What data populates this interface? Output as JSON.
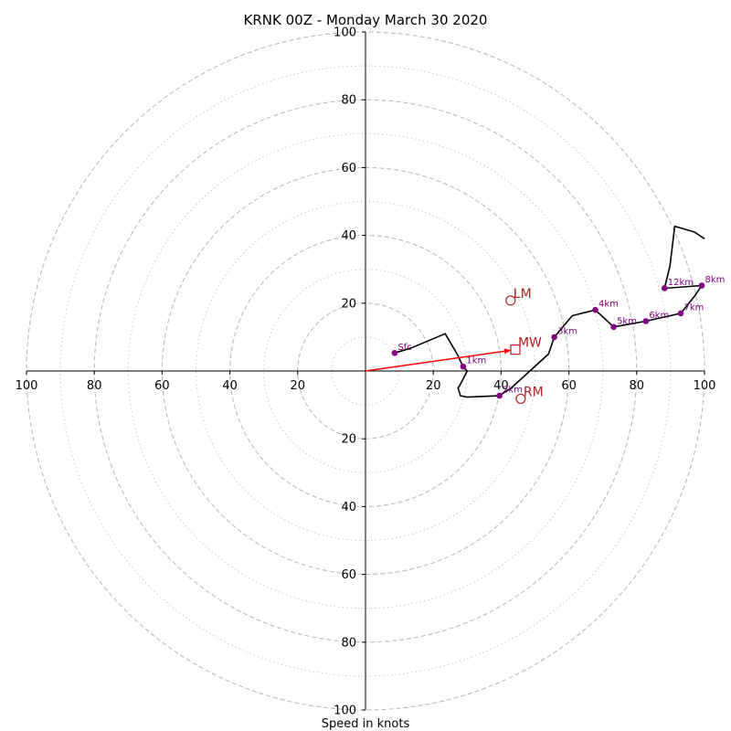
{
  "chart_data": {
    "type": "scatter",
    "title": "KRNK 00Z - Monday March 30 2020",
    "xlabel": "Speed in knots",
    "ylabel": "",
    "xlim": [
      -100,
      100
    ],
    "ylim": [
      -100,
      100
    ],
    "grid": true,
    "rings_major": [
      20,
      40,
      60,
      80,
      100
    ],
    "rings_minor": [
      10,
      30,
      50,
      70,
      90
    ],
    "x_ticks": [
      {
        "v": -100,
        "label": "100"
      },
      {
        "v": -80,
        "label": "80"
      },
      {
        "v": -60,
        "label": "60"
      },
      {
        "v": -40,
        "label": "40"
      },
      {
        "v": -20,
        "label": "20"
      },
      {
        "v": 20,
        "label": "20"
      },
      {
        "v": 40,
        "label": "40"
      },
      {
        "v": 60,
        "label": "60"
      },
      {
        "v": 80,
        "label": "80"
      },
      {
        "v": 100,
        "label": "100"
      }
    ],
    "y_ticks": [
      {
        "v": 100,
        "label": "100"
      },
      {
        "v": 80,
        "label": "80"
      },
      {
        "v": 60,
        "label": "60"
      },
      {
        "v": 40,
        "label": "40"
      },
      {
        "v": 20,
        "label": "20"
      },
      {
        "v": -20,
        "label": "20"
      },
      {
        "v": -40,
        "label": "40"
      },
      {
        "v": -60,
        "label": "60"
      },
      {
        "v": -80,
        "label": "80"
      },
      {
        "v": -100,
        "label": "100"
      }
    ],
    "trace": [
      [
        8.6,
        5.3
      ],
      [
        13.5,
        6.8
      ],
      [
        23.5,
        11.0
      ],
      [
        27.0,
        5.0
      ],
      [
        28.8,
        1.3
      ],
      [
        30.0,
        0.0
      ],
      [
        27.8,
        -4.3
      ],
      [
        27.3,
        -5.0
      ],
      [
        28.0,
        -7.3
      ],
      [
        30.0,
        -7.7
      ],
      [
        39.5,
        -7.3
      ],
      [
        43.0,
        -5.0
      ],
      [
        54.0,
        5.0
      ],
      [
        55.7,
        10.0
      ],
      [
        61.0,
        16.3
      ],
      [
        67.8,
        18.0
      ],
      [
        73.2,
        13.0
      ],
      [
        82.7,
        14.7
      ],
      [
        93.0,
        17.0
      ],
      [
        97.0,
        22.0
      ],
      [
        99.2,
        25.2
      ],
      [
        88.2,
        24.4
      ],
      [
        89.8,
        31.0
      ],
      [
        91.2,
        42.7
      ],
      [
        97.0,
        41.0
      ],
      [
        100.0,
        39.0
      ]
    ],
    "height_markers": [
      {
        "label": "Sfc",
        "x": 8.6,
        "y": 5.3
      },
      {
        "label": "1km",
        "x": 28.8,
        "y": 1.3
      },
      {
        "label": "2km",
        "x": 39.5,
        "y": -7.3
      },
      {
        "label": "3km",
        "x": 55.7,
        "y": 10.0
      },
      {
        "label": "4km",
        "x": 67.8,
        "y": 18.0
      },
      {
        "label": "5km",
        "x": 73.2,
        "y": 13.0
      },
      {
        "label": "6km",
        "x": 82.7,
        "y": 14.7
      },
      {
        "label": "7km",
        "x": 93.0,
        "y": 17.0
      },
      {
        "label": "8km",
        "x": 99.2,
        "y": 25.2
      },
      {
        "label": "12km",
        "x": 88.2,
        "y": 24.4
      }
    ],
    "motions": [
      {
        "label": "LM",
        "x": 42.8,
        "y": 20.8,
        "marker": "circle"
      },
      {
        "label": "MW",
        "x": 44.2,
        "y": 6.3,
        "marker": "square"
      },
      {
        "label": "RM",
        "x": 45.8,
        "y": -8.2,
        "marker": "circle"
      }
    ],
    "mean_wind_vector": {
      "x": 44.2,
      "y": 6.3
    },
    "colors": {
      "trace": "#000000",
      "markers": "#800080",
      "motion": "#b22222",
      "vector": "#ff0000",
      "grid": "#bbbbbb"
    }
  }
}
